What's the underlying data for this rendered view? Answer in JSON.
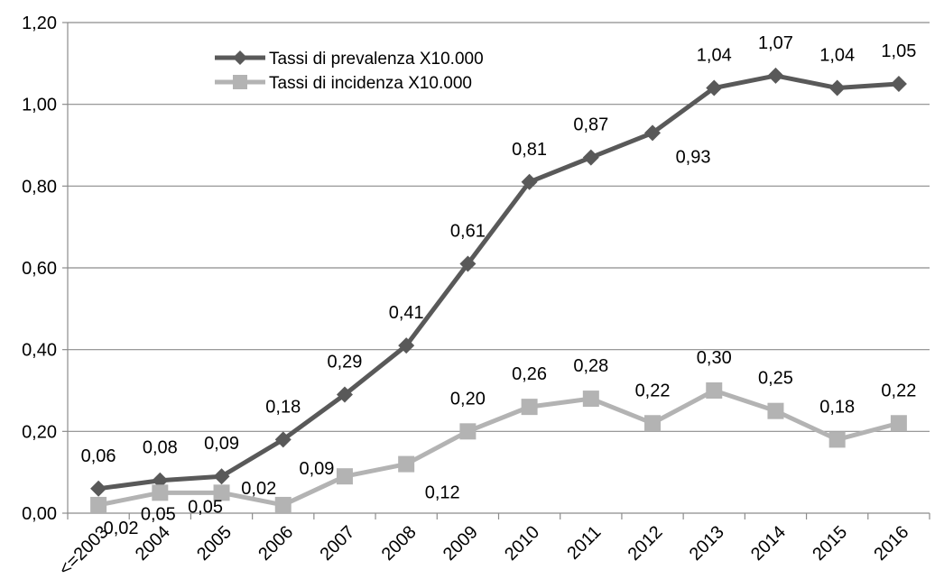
{
  "chart_data": {
    "type": "line",
    "title": "",
    "xlabel": "",
    "ylabel": "",
    "ylim": [
      0,
      1.2
    ],
    "ytick_step": 0.2,
    "yticks": [
      "0,00",
      "0,20",
      "0,40",
      "0,60",
      "0,80",
      "1,00",
      "1,20"
    ],
    "grid": "horizontal",
    "legend_position": "top-left",
    "categories": [
      "<=2003",
      "2004",
      "2005",
      "2006",
      "2007",
      "2008",
      "2009",
      "2010",
      "2011",
      "2012",
      "2013",
      "2014",
      "2015",
      "2016"
    ],
    "series": [
      {
        "name": "Tassi di prevalenza X10.000",
        "color": "#595959",
        "marker": "diamond",
        "values": [
          0.06,
          0.08,
          0.09,
          0.18,
          0.29,
          0.41,
          0.61,
          0.81,
          0.87,
          0.93,
          1.04,
          1.07,
          1.04,
          1.05
        ],
        "labels": [
          "0,06",
          "0,08",
          "0,09",
          "0,18",
          "0,29",
          "0,41",
          "0,61",
          "0,81",
          "0,87",
          "0,93",
          "1,04",
          "1,07",
          "1,04",
          "1,05"
        ]
      },
      {
        "name": "Tassi di incidenza X10.000",
        "color": "#b3b3b3",
        "marker": "square",
        "values": [
          0.02,
          0.05,
          0.05,
          0.02,
          0.09,
          0.12,
          0.2,
          0.26,
          0.28,
          0.22,
          0.3,
          0.25,
          0.18,
          0.22
        ],
        "labels": [
          "0,02",
          "0,05",
          "0,05",
          "0,02",
          "0,09",
          "0,12",
          "0,20",
          "0,26",
          "0,28",
          "0,22",
          "0,30",
          "0,25",
          "0,18",
          "0,22"
        ]
      }
    ]
  }
}
